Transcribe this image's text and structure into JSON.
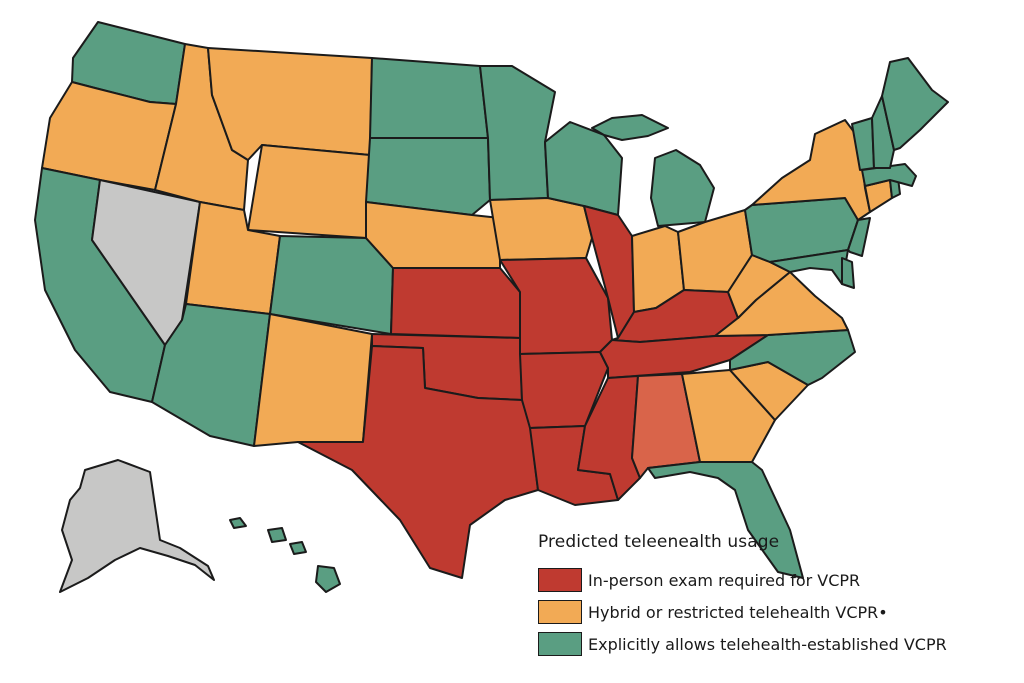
{
  "colors": {
    "in_person": "#bf3a30",
    "hybrid": "#f2aa55",
    "telehealth": "#5a9e82",
    "not_classified": "#c7c7c6",
    "alabama_shade": "#d9644a",
    "border": "#1b1b1b",
    "background": "#ffffff"
  },
  "legend": {
    "title": "Predicted teleеnealth usage",
    "items": [
      {
        "label": "In-person exam required     for VCPR",
        "category": "in_person"
      },
      {
        "label": "Hybrid or restricted telehealth VCPR•",
        "category": "hybrid"
      },
      {
        "label": "Explicitly allows telehealth-established VCPR",
        "category": "telehealth"
      }
    ]
  },
  "states": [
    {
      "name": "WA",
      "category": "telehealth"
    },
    {
      "name": "OR",
      "category": "hybrid"
    },
    {
      "name": "CA",
      "category": "telehealth"
    },
    {
      "name": "NV",
      "category": "not_classified"
    },
    {
      "name": "ID",
      "category": "hybrid"
    },
    {
      "name": "MT",
      "category": "hybrid"
    },
    {
      "name": "WY",
      "category": "hybrid"
    },
    {
      "name": "UT",
      "category": "hybrid"
    },
    {
      "name": "AZ",
      "category": "telehealth"
    },
    {
      "name": "CO",
      "category": "telehealth"
    },
    {
      "name": "NM",
      "category": "hybrid"
    },
    {
      "name": "ND",
      "category": "telehealth"
    },
    {
      "name": "SD",
      "category": "telehealth"
    },
    {
      "name": "NE",
      "category": "hybrid"
    },
    {
      "name": "KS",
      "category": "in_person"
    },
    {
      "name": "OK",
      "category": "in_person"
    },
    {
      "name": "TX",
      "category": "in_person"
    },
    {
      "name": "MN",
      "category": "telehealth"
    },
    {
      "name": "IA",
      "category": "hybrid"
    },
    {
      "name": "MO",
      "category": "in_person"
    },
    {
      "name": "AR",
      "category": "in_person"
    },
    {
      "name": "LA",
      "category": "in_person"
    },
    {
      "name": "WI",
      "category": "telehealth"
    },
    {
      "name": "IL",
      "category": "in_person"
    },
    {
      "name": "MI",
      "category": "telehealth"
    },
    {
      "name": "IN",
      "category": "hybrid"
    },
    {
      "name": "OH",
      "category": "hybrid"
    },
    {
      "name": "KY",
      "category": "in_person"
    },
    {
      "name": "TN",
      "category": "in_person"
    },
    {
      "name": "MS",
      "category": "in_person"
    },
    {
      "name": "AL",
      "category": "alabama_shade"
    },
    {
      "name": "GA",
      "category": "hybrid"
    },
    {
      "name": "FL",
      "category": "telehealth"
    },
    {
      "name": "SC",
      "category": "hybrid"
    },
    {
      "name": "NC",
      "category": "telehealth"
    },
    {
      "name": "VA",
      "category": "hybrid"
    },
    {
      "name": "WV",
      "category": "hybrid"
    },
    {
      "name": "PA",
      "category": "telehealth"
    },
    {
      "name": "NY",
      "category": "hybrid"
    },
    {
      "name": "MD",
      "category": "telehealth"
    },
    {
      "name": "DE",
      "category": "telehealth"
    },
    {
      "name": "NJ",
      "category": "telehealth"
    },
    {
      "name": "CT",
      "category": "hybrid"
    },
    {
      "name": "RI",
      "category": "telehealth"
    },
    {
      "name": "MA",
      "category": "telehealth"
    },
    {
      "name": "VT",
      "category": "telehealth"
    },
    {
      "name": "NH",
      "category": "telehealth"
    },
    {
      "name": "ME",
      "category": "telehealth"
    },
    {
      "name": "AK",
      "category": "not_classified"
    },
    {
      "name": "HI",
      "category": "telehealth"
    }
  ]
}
